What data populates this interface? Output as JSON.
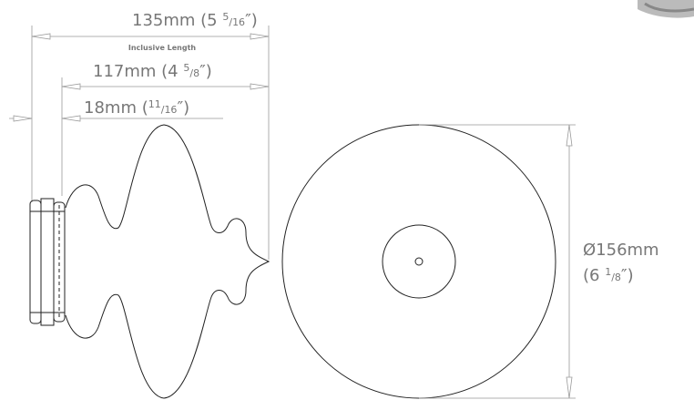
{
  "dimensions": {
    "overall": {
      "text": "135mm (5 ",
      "num": "5",
      "den": "16",
      "close": "″)"
    },
    "note": "Inclusive Length",
    "shaft": {
      "text": "117mm (4 ",
      "num": "5",
      "den": "8",
      "close": "″)"
    },
    "base": {
      "text": "18mm (",
      "num": "11",
      "den": "16",
      "close": "″)"
    },
    "diameter": {
      "line1": "Ø156mm",
      "text": "(6 ",
      "num": "1",
      "den": "8",
      "close": "″)"
    }
  }
}
